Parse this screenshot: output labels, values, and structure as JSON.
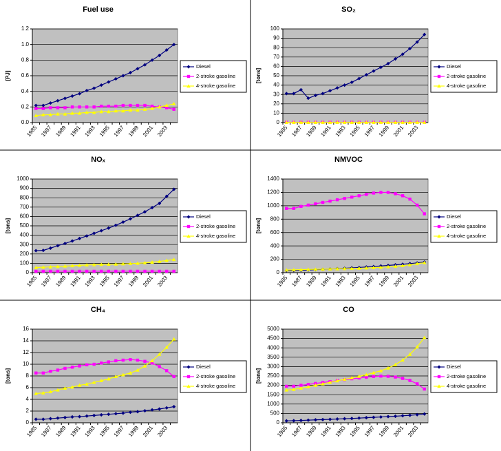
{
  "chart_data": [
    {
      "type": "line",
      "title": "Fuel use",
      "y_label": "[PJ]",
      "categories": [
        "1985",
        null,
        "1987",
        null,
        "1989",
        null,
        "1991",
        null,
        "1993",
        null,
        "1995",
        null,
        "1997",
        null,
        "1999",
        null,
        "2001",
        null,
        "2003",
        null
      ],
      "ylim": [
        0,
        1.2
      ],
      "yticks": [
        {
          "value": 0,
          "label": "0.0"
        },
        0.2,
        0.4,
        0.6,
        0.8,
        {
          "value": 1,
          "label": "1.0"
        },
        1.2
      ],
      "grid": true,
      "legend": "right",
      "series": [
        {
          "name": "Diesel",
          "color": "#000080",
          "values": [
            0.22,
            0.22,
            0.25,
            0.28,
            0.31,
            0.34,
            0.37,
            0.41,
            0.44,
            0.48,
            0.52,
            0.56,
            0.6,
            0.64,
            0.69,
            0.74,
            0.8,
            0.86,
            0.93,
            1.0
          ]
        },
        {
          "name": "2-stroke gasoline",
          "color": "#ff00ff",
          "values": [
            0.18,
            0.18,
            0.19,
            0.19,
            0.19,
            0.2,
            0.2,
            0.2,
            0.2,
            0.21,
            0.21,
            0.21,
            0.22,
            0.22,
            0.22,
            0.22,
            0.21,
            0.2,
            0.19,
            0.17
          ]
        },
        {
          "name": "4-stroke gasoline",
          "color": "#ffff00",
          "values": [
            0.09,
            0.1,
            0.1,
            0.11,
            0.11,
            0.12,
            0.12,
            0.13,
            0.13,
            0.14,
            0.14,
            0.15,
            0.15,
            0.16,
            0.16,
            0.17,
            0.18,
            0.2,
            0.22,
            0.24
          ]
        }
      ]
    },
    {
      "type": "line",
      "title": "SO₂",
      "y_label": "[tons]",
      "categories": [
        "1985",
        null,
        "1987",
        null,
        "1989",
        null,
        "1991",
        null,
        "1993",
        null,
        "1995",
        null,
        "1997",
        null,
        "1999",
        null,
        "2001",
        null,
        "2003",
        null
      ],
      "ylim": [
        0,
        100
      ],
      "yticks": [
        0,
        10,
        20,
        30,
        40,
        50,
        60,
        70,
        80,
        90,
        100
      ],
      "grid": true,
      "legend": "right",
      "series": [
        {
          "name": "Diesel",
          "color": "#000080",
          "values": [
            31,
            31,
            35,
            26,
            29,
            31,
            34,
            37,
            40,
            43,
            47,
            51,
            55,
            59,
            63,
            68,
            73,
            79,
            86,
            94
          ]
        },
        {
          "name": "2-stroke gasoline",
          "color": "#ff00ff",
          "values": [
            0.3,
            0.3,
            0.3,
            0.3,
            0.3,
            0.3,
            0.3,
            0.3,
            0.3,
            0.3,
            0.3,
            0.3,
            0.3,
            0.3,
            0.3,
            0.3,
            0.3,
            0.3,
            0.3,
            0.3
          ]
        },
        {
          "name": "4-stroke gasoline",
          "color": "#ffff00",
          "values": [
            0.2,
            0.2,
            0.2,
            0.2,
            0.2,
            0.2,
            0.2,
            0.2,
            0.2,
            0.2,
            0.2,
            0.2,
            0.2,
            0.2,
            0.2,
            0.2,
            0.2,
            0.2,
            0.2,
            0.2
          ]
        }
      ]
    },
    {
      "type": "line",
      "title": "NOₓ",
      "y_label": "[tons]",
      "categories": [
        "1985",
        null,
        "1987",
        null,
        "1989",
        null,
        "1991",
        null,
        "1993",
        null,
        "1995",
        null,
        "1997",
        null,
        "1999",
        null,
        "2001",
        null,
        "2003",
        null
      ],
      "ylim": [
        0,
        1000
      ],
      "yticks": [
        0,
        100,
        200,
        300,
        400,
        500,
        600,
        700,
        800,
        900,
        1000
      ],
      "grid": true,
      "legend": "right",
      "series": [
        {
          "name": "Diesel",
          "color": "#000080",
          "values": [
            235,
            238,
            262,
            288,
            312,
            338,
            365,
            392,
            420,
            448,
            476,
            506,
            540,
            575,
            612,
            650,
            695,
            740,
            815,
            890
          ]
        },
        {
          "name": "2-stroke gasoline",
          "color": "#ff00ff",
          "values": [
            15,
            15,
            15,
            15,
            15,
            15,
            15,
            15,
            15,
            15,
            15,
            15,
            15,
            15,
            15,
            15,
            15,
            15,
            15,
            15
          ]
        },
        {
          "name": "4-stroke gasoline",
          "color": "#ffff00",
          "values": [
            55,
            58,
            62,
            66,
            70,
            74,
            78,
            82,
            85,
            88,
            90,
            92,
            94,
            97,
            100,
            105,
            112,
            120,
            130,
            140
          ]
        }
      ]
    },
    {
      "type": "line",
      "title": "NMVOC",
      "y_label": "[tons]",
      "categories": [
        "1985",
        null,
        "1987",
        null,
        "1989",
        null,
        "1991",
        null,
        "1993",
        null,
        "1995",
        null,
        "1997",
        null,
        "1999",
        null,
        "2001",
        null,
        "2003",
        null
      ],
      "ylim": [
        0,
        1400
      ],
      "yticks": [
        0,
        200,
        400,
        600,
        800,
        1000,
        1200,
        1400
      ],
      "grid": true,
      "legend": "right",
      "series": [
        {
          "name": "Diesel",
          "color": "#000080",
          "values": [
            30,
            32,
            36,
            40,
            45,
            50,
            55,
            60,
            66,
            72,
            78,
            85,
            92,
            100,
            108,
            117,
            126,
            136,
            146,
            160
          ]
        },
        {
          "name": "2-stroke gasoline",
          "color": "#ff00ff",
          "values": [
            960,
            960,
            990,
            1010,
            1030,
            1050,
            1070,
            1090,
            1110,
            1130,
            1150,
            1170,
            1190,
            1200,
            1200,
            1180,
            1150,
            1100,
            1010,
            880
          ]
        },
        {
          "name": "4-stroke gasoline",
          "color": "#ffff00",
          "values": [
            40,
            42,
            45,
            48,
            50,
            52,
            55,
            58,
            60,
            63,
            66,
            70,
            75,
            80,
            88,
            96,
            105,
            118,
            135,
            150
          ]
        }
      ]
    },
    {
      "type": "line",
      "title": "CH₄",
      "y_label": "[tons]",
      "categories": [
        "1985",
        null,
        "1987",
        null,
        "1989",
        null,
        "1991",
        null,
        "1993",
        null,
        "1995",
        null,
        "1997",
        null,
        "1999",
        null,
        "2001",
        null,
        "2003",
        null
      ],
      "ylim": [
        0,
        16
      ],
      "yticks": [
        0,
        2,
        4,
        6,
        8,
        10,
        12,
        14,
        16
      ],
      "grid": true,
      "legend": "right",
      "series": [
        {
          "name": "Diesel",
          "color": "#000080",
          "values": [
            0.6,
            0.6,
            0.7,
            0.8,
            0.9,
            1.0,
            1.05,
            1.15,
            1.25,
            1.35,
            1.45,
            1.55,
            1.65,
            1.8,
            1.9,
            2.05,
            2.2,
            2.35,
            2.55,
            2.75
          ]
        },
        {
          "name": "2-stroke gasoline",
          "color": "#ff00ff",
          "values": [
            8.5,
            8.5,
            8.8,
            9.0,
            9.3,
            9.5,
            9.7,
            9.9,
            10.0,
            10.2,
            10.4,
            10.6,
            10.7,
            10.8,
            10.7,
            10.5,
            10.2,
            9.6,
            8.9,
            7.9
          ]
        },
        {
          "name": "4-stroke gasoline",
          "color": "#ffff00",
          "values": [
            5.0,
            5.1,
            5.3,
            5.6,
            5.9,
            6.1,
            6.4,
            6.6,
            6.9,
            7.2,
            7.5,
            7.9,
            8.2,
            8.5,
            9.0,
            9.7,
            10.6,
            11.7,
            12.9,
            14.3
          ]
        }
      ]
    },
    {
      "type": "line",
      "title": "CO",
      "y_label": "[tons]",
      "categories": [
        "1985",
        null,
        "1987",
        null,
        "1989",
        null,
        "1991",
        null,
        "1993",
        null,
        "1995",
        null,
        "1997",
        null,
        "1999",
        null,
        "2001",
        null,
        "2003",
        null
      ],
      "ylim": [
        0,
        5000
      ],
      "yticks": [
        0,
        500,
        1000,
        1500,
        2000,
        2500,
        3000,
        3500,
        4000,
        4500,
        5000
      ],
      "grid": true,
      "legend": "right",
      "series": [
        {
          "name": "Diesel",
          "color": "#000080",
          "values": [
            100,
            110,
            125,
            140,
            155,
            170,
            185,
            200,
            215,
            230,
            250,
            270,
            290,
            310,
            330,
            350,
            375,
            400,
            430,
            470
          ]
        },
        {
          "name": "2-stroke gasoline",
          "color": "#ff00ff",
          "values": [
            1950,
            1950,
            2000,
            2050,
            2100,
            2150,
            2200,
            2250,
            2300,
            2350,
            2390,
            2430,
            2470,
            2490,
            2480,
            2440,
            2370,
            2260,
            2080,
            1800
          ]
        },
        {
          "name": "4-stroke gasoline",
          "color": "#ffff00",
          "values": [
            1750,
            1780,
            1850,
            1920,
            2000,
            2080,
            2160,
            2240,
            2320,
            2400,
            2480,
            2570,
            2670,
            2780,
            2920,
            3100,
            3350,
            3650,
            4050,
            4550
          ]
        }
      ]
    }
  ]
}
